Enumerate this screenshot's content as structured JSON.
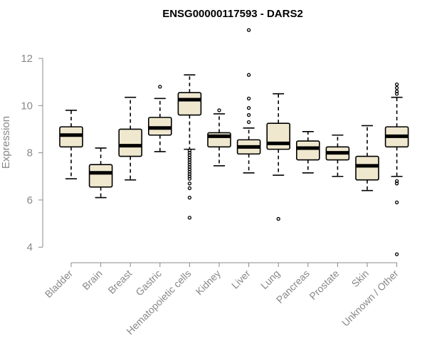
{
  "chart_data": {
    "type": "boxplot",
    "title": "ENSG00000117593 - DARS2",
    "ylabel": "Expression",
    "xlabel": "",
    "ylim": [
      3.6,
      12.8
    ],
    "yticks": [
      4,
      6,
      8,
      10,
      12
    ],
    "box_fill": "#efe8cf",
    "categories": [
      "Bladder",
      "Brain",
      "Breast",
      "Gastric",
      "Hematopoietic cells",
      "Kidney",
      "Liver",
      "Lung",
      "Pancreas",
      "Prostate",
      "Skin",
      "Unknown / Other"
    ],
    "boxes": [
      {
        "category": "Bladder",
        "whisker_low": 6.9,
        "q1": 8.25,
        "median": 8.75,
        "q3": 9.1,
        "whisker_high": 9.8,
        "outliers": []
      },
      {
        "category": "Brain",
        "whisker_low": 6.1,
        "q1": 6.55,
        "median": 7.15,
        "q3": 7.5,
        "whisker_high": 8.2,
        "outliers": []
      },
      {
        "category": "Breast",
        "whisker_low": 6.85,
        "q1": 7.85,
        "median": 8.3,
        "q3": 9.0,
        "whisker_high": 10.35,
        "outliers": []
      },
      {
        "category": "Gastric",
        "whisker_low": 8.05,
        "q1": 8.75,
        "median": 9.05,
        "q3": 9.5,
        "whisker_high": 10.3,
        "outliers": [
          10.8
        ]
      },
      {
        "category": "Hematopoietic cells",
        "whisker_low": 8.15,
        "q1": 9.6,
        "median": 10.25,
        "q3": 10.55,
        "whisker_high": 11.3,
        "outliers": [
          8.1,
          8.0,
          7.9,
          7.8,
          7.7,
          7.6,
          7.5,
          7.4,
          7.3,
          7.2,
          7.1,
          7.0,
          6.9,
          6.7,
          6.5,
          6.1,
          5.25
        ]
      },
      {
        "category": "Kidney",
        "whisker_low": 7.45,
        "q1": 8.25,
        "median": 8.7,
        "q3": 8.85,
        "whisker_high": 9.65,
        "outliers": [
          9.8
        ]
      },
      {
        "category": "Liver",
        "whisker_low": 7.15,
        "q1": 7.95,
        "median": 8.25,
        "q3": 8.55,
        "whisker_high": 9.05,
        "outliers": [
          9.3,
          9.6,
          9.9,
          10.3,
          11.3,
          13.2
        ]
      },
      {
        "category": "Lung",
        "whisker_low": 7.05,
        "q1": 8.15,
        "median": 8.4,
        "q3": 9.25,
        "whisker_high": 10.5,
        "outliers": [
          5.2
        ]
      },
      {
        "category": "Pancreas",
        "whisker_low": 7.15,
        "q1": 7.7,
        "median": 8.2,
        "q3": 8.5,
        "whisker_high": 8.9,
        "outliers": []
      },
      {
        "category": "Prostate",
        "whisker_low": 7.0,
        "q1": 7.7,
        "median": 8.0,
        "q3": 8.25,
        "whisker_high": 8.75,
        "outliers": []
      },
      {
        "category": "Skin",
        "whisker_low": 6.4,
        "q1": 6.85,
        "median": 7.45,
        "q3": 7.85,
        "whisker_high": 9.15,
        "outliers": []
      },
      {
        "category": "Unknown / Other",
        "whisker_low": 7.0,
        "q1": 8.25,
        "median": 8.7,
        "q3": 9.1,
        "whisker_high": 10.35,
        "outliers": [
          10.5,
          10.6,
          10.75,
          10.9,
          6.8,
          6.7,
          5.9,
          3.7
        ]
      }
    ]
  }
}
